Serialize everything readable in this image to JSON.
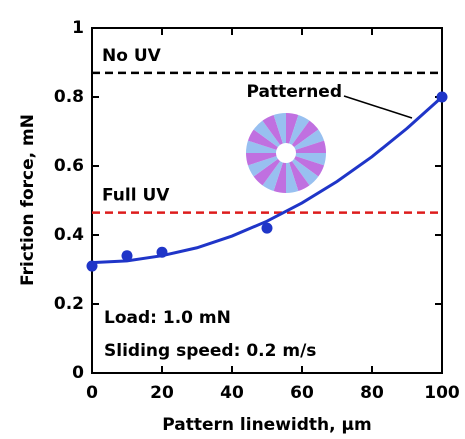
{
  "chart_data": {
    "type": "scatter",
    "x_label": "Pattern linewidth, μm",
    "y_label": "Friction force, mN",
    "xlim": [
      0,
      100
    ],
    "xticks": [
      0,
      20,
      40,
      60,
      80,
      100
    ],
    "ylim": [
      0,
      1
    ],
    "yticks": [
      0,
      0.2,
      0.4,
      0.6,
      0.8,
      1
    ],
    "series": [
      {
        "name": "Patterned",
        "color": "#1f35c8",
        "x": [
          0,
          10,
          20,
          50,
          100
        ],
        "values": [
          0.31,
          0.34,
          0.35,
          0.42,
          0.8
        ]
      }
    ],
    "fit": {
      "color": "#1f35c8",
      "x": [
        0,
        10,
        20,
        30,
        40,
        50,
        60,
        70,
        80,
        90,
        100
      ],
      "values": [
        0.32,
        0.325,
        0.34,
        0.363,
        0.397,
        0.44,
        0.493,
        0.555,
        0.627,
        0.709,
        0.8
      ]
    },
    "reference_lines": [
      {
        "name": "No UV",
        "value": 0.87,
        "color": "#000000"
      },
      {
        "name": "Full UV",
        "value": 0.465,
        "color": "#dd1c1c"
      }
    ],
    "annotations": [
      "Load: 1.0 mN",
      "Sliding speed: 0.2 m/s"
    ]
  }
}
